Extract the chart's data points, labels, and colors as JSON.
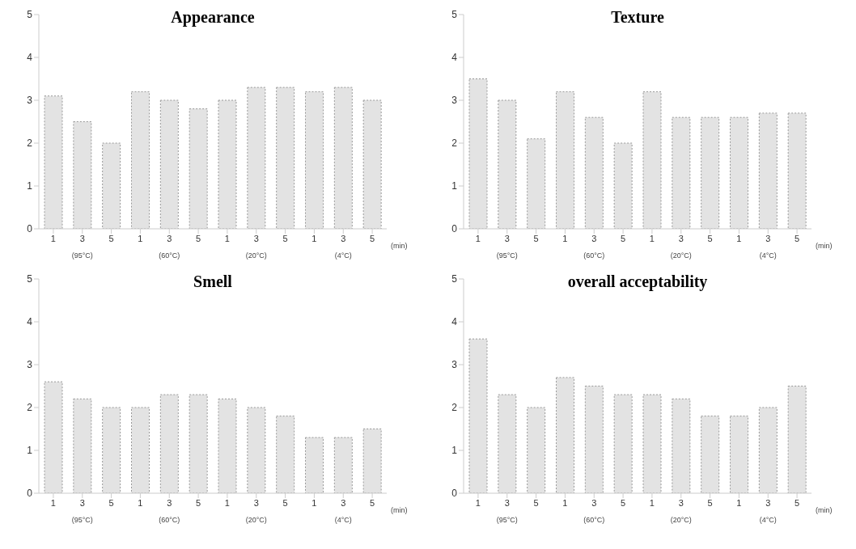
{
  "chart_data": [
    {
      "type": "bar",
      "title": "Appearance",
      "xlabel": "(min)",
      "categories": [
        "1",
        "3",
        "5",
        "1",
        "3",
        "5",
        "1",
        "3",
        "5",
        "1",
        "3",
        "5"
      ],
      "values": [
        3.1,
        2.5,
        2.0,
        3.2,
        3.0,
        2.8,
        3.0,
        3.3,
        3.3,
        3.2,
        3.3,
        3.0
      ],
      "color": "#e3e3e3",
      "ylim": [
        0,
        5
      ],
      "yticks": [
        0,
        1,
        2,
        3,
        4,
        5
      ],
      "grid": false,
      "annotations": [
        "(95°C)",
        "(60°C)",
        "(20°C)",
        "(4°C)"
      ]
    },
    {
      "type": "bar",
      "title": "Texture",
      "xlabel": "(min)",
      "categories": [
        "1",
        "3",
        "5",
        "1",
        "3",
        "5",
        "1",
        "3",
        "5",
        "1",
        "3",
        "5"
      ],
      "values": [
        3.5,
        3.0,
        2.1,
        3.2,
        2.6,
        2.0,
        3.2,
        2.6,
        2.6,
        2.6,
        2.7,
        2.7
      ],
      "color": "#e3e3e3",
      "ylim": [
        0,
        5
      ],
      "yticks": [
        0,
        1,
        2,
        3,
        4,
        5
      ],
      "grid": false,
      "annotations": [
        "(95°C)",
        "(60°C)",
        "(20°C)",
        "(4°C)"
      ]
    },
    {
      "type": "bar",
      "title": "Smell",
      "xlabel": "(min)",
      "categories": [
        "1",
        "3",
        "5",
        "1",
        "3",
        "5",
        "1",
        "3",
        "5",
        "1",
        "3",
        "5"
      ],
      "values": [
        2.6,
        2.2,
        2.0,
        2.0,
        2.3,
        2.3,
        2.2,
        2.0,
        1.8,
        1.3,
        1.3,
        1.5
      ],
      "color": "#e3e3e3",
      "ylim": [
        0,
        5
      ],
      "yticks": [
        0,
        1,
        2,
        3,
        4,
        5
      ],
      "grid": false,
      "annotations": [
        "(95°C)",
        "(60°C)",
        "(20°C)",
        "(4°C)"
      ]
    },
    {
      "type": "bar",
      "title": "overall acceptability",
      "xlabel": "(min)",
      "categories": [
        "1",
        "3",
        "5",
        "1",
        "3",
        "5",
        "1",
        "3",
        "5",
        "1",
        "3",
        "5"
      ],
      "values": [
        3.6,
        2.3,
        2.0,
        2.7,
        2.5,
        2.3,
        2.3,
        2.2,
        1.8,
        1.8,
        2.0,
        2.5
      ],
      "color": "#e3e3e3",
      "ylim": [
        0,
        5
      ],
      "yticks": [
        0,
        1,
        2,
        3,
        4,
        5
      ],
      "grid": false,
      "annotations": [
        "(95°C)",
        "(60°C)",
        "(20°C)",
        "(4°C)"
      ]
    }
  ]
}
